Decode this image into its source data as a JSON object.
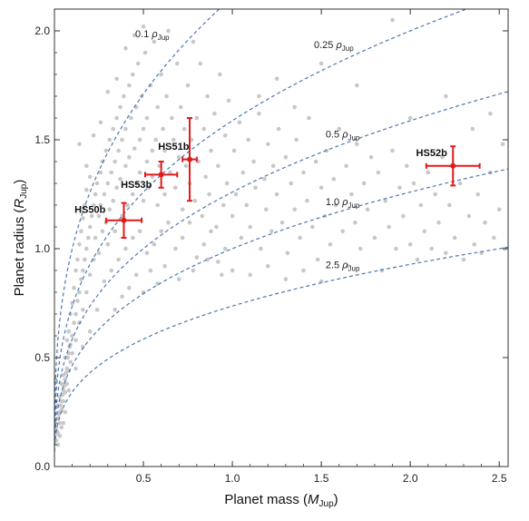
{
  "chart_data": {
    "type": "scatter",
    "xlabel": {
      "text": "Planet mass (",
      "sym": "M",
      "sub": "Jup",
      "close": ")"
    },
    "ylabel": {
      "text": "Planet radius (",
      "sym": "R",
      "sub": "Jup",
      "close": ")"
    },
    "xlim": [
      0,
      2.55
    ],
    "ylim": [
      0,
      2.1
    ],
    "xticks": [
      "0.5",
      "1.0",
      "1.5",
      "2.0",
      "2.5"
    ],
    "yticks": [
      "0.0",
      "0.5",
      "1.0",
      "1.5",
      "2.0"
    ],
    "density_curves": [
      {
        "coef": "0.1",
        "rho": "ρ",
        "sub": "Jup",
        "density": 0.1,
        "label_x": 0.55,
        "label_y": 1.97
      },
      {
        "coef": "0.25",
        "rho": "ρ",
        "sub": "Jup",
        "density": 0.25,
        "label_x": 1.57,
        "label_y": 1.92
      },
      {
        "coef": "0.5",
        "rho": "ρ",
        "sub": "Jup",
        "density": 0.5,
        "label_x": 1.62,
        "label_y": 1.51
      },
      {
        "coef": "1.0",
        "rho": "ρ",
        "sub": "Jup",
        "density": 1.0,
        "label_x": 1.62,
        "label_y": 1.2
      },
      {
        "coef": "2.5",
        "rho": "ρ",
        "sub": "Jup",
        "density": 2.5,
        "label_x": 1.62,
        "label_y": 0.91
      }
    ],
    "planets": [
      {
        "name": "HS50b",
        "x": 0.39,
        "y": 1.13,
        "xerr": 0.1,
        "yerr": 0.08,
        "label_x": 0.2,
        "label_y": 1.165
      },
      {
        "name": "HS51b",
        "x": 0.76,
        "y": 1.41,
        "xerr": 0.04,
        "yerr": 0.19,
        "label_x": 0.67,
        "label_y": 1.455
      },
      {
        "name": "HS52b",
        "x": 2.24,
        "y": 1.38,
        "xerr": 0.15,
        "yerr": 0.09,
        "label_x": 2.12,
        "label_y": 1.425
      },
      {
        "name": "HS53b",
        "x": 0.6,
        "y": 1.34,
        "xerr": 0.09,
        "yerr": 0.06,
        "label_x": 0.46,
        "label_y": 1.28
      }
    ],
    "colors": {
      "background_points": "#c8c8c8",
      "curves": "#4d78b0",
      "planets": "#e21a1a"
    },
    "background_points": [
      [
        0.01,
        0.12
      ],
      [
        0.01,
        0.18
      ],
      [
        0.02,
        0.22
      ],
      [
        0.02,
        0.28
      ],
      [
        0.02,
        0.15
      ],
      [
        0.03,
        0.25
      ],
      [
        0.03,
        0.32
      ],
      [
        0.03,
        0.2
      ],
      [
        0.04,
        0.3
      ],
      [
        0.04,
        0.38
      ],
      [
        0.04,
        0.26
      ],
      [
        0.05,
        0.35
      ],
      [
        0.05,
        0.42
      ],
      [
        0.05,
        0.3
      ],
      [
        0.06,
        0.4
      ],
      [
        0.06,
        0.5
      ],
      [
        0.06,
        0.34
      ],
      [
        0.07,
        0.45
      ],
      [
        0.07,
        0.58
      ],
      [
        0.07,
        0.38
      ],
      [
        0.08,
        0.52
      ],
      [
        0.08,
        0.62
      ],
      [
        0.08,
        0.44
      ],
      [
        0.09,
        0.56
      ],
      [
        0.09,
        0.7
      ],
      [
        0.09,
        0.48
      ],
      [
        0.1,
        0.6
      ],
      [
        0.1,
        0.75
      ],
      [
        0.1,
        0.52
      ],
      [
        0.11,
        0.66
      ],
      [
        0.11,
        0.82
      ],
      [
        0.12,
        0.7
      ],
      [
        0.12,
        0.9
      ],
      [
        0.12,
        0.58
      ],
      [
        0.13,
        0.76
      ],
      [
        0.13,
        0.95
      ],
      [
        0.14,
        0.8
      ],
      [
        0.14,
        1.02
      ],
      [
        0.14,
        0.66
      ],
      [
        0.15,
        0.86
      ],
      [
        0.15,
        1.08
      ],
      [
        0.16,
        0.9
      ],
      [
        0.16,
        1.14
      ],
      [
        0.16,
        0.72
      ],
      [
        0.17,
        0.95
      ],
      [
        0.17,
        1.2
      ],
      [
        0.18,
        1.0
      ],
      [
        0.18,
        1.27
      ],
      [
        0.18,
        0.8
      ],
      [
        0.19,
        1.05
      ],
      [
        0.2,
        1.1
      ],
      [
        0.2,
        1.33
      ],
      [
        0.2,
        0.88
      ],
      [
        0.21,
        1.15
      ],
      [
        0.22,
        1.2
      ],
      [
        0.22,
        0.95
      ],
      [
        0.23,
        1.25
      ],
      [
        0.23,
        1.05
      ],
      [
        0.24,
        1.3
      ],
      [
        0.25,
        1.15
      ],
      [
        0.25,
        0.98
      ],
      [
        0.26,
        1.35
      ],
      [
        0.26,
        1.2
      ],
      [
        0.27,
        1.4
      ],
      [
        0.27,
        1.08
      ],
      [
        0.28,
        1.25
      ],
      [
        0.29,
        1.45
      ],
      [
        0.29,
        1.12
      ],
      [
        0.3,
        1.3
      ],
      [
        0.3,
        1.02
      ],
      [
        0.31,
        1.5
      ],
      [
        0.31,
        1.18
      ],
      [
        0.32,
        1.35
      ],
      [
        0.33,
        1.55
      ],
      [
        0.33,
        1.22
      ],
      [
        0.34,
        1.4
      ],
      [
        0.34,
        1.08
      ],
      [
        0.35,
        1.6
      ],
      [
        0.35,
        1.28
      ],
      [
        0.36,
        1.45
      ],
      [
        0.37,
        1.65
      ],
      [
        0.37,
        1.32
      ],
      [
        0.38,
        1.5
      ],
      [
        0.38,
        1.15
      ],
      [
        0.39,
        1.7
      ],
      [
        0.4,
        1.38
      ],
      [
        0.4,
        1.55
      ],
      [
        0.41,
        1.2
      ],
      [
        0.42,
        1.75
      ],
      [
        0.42,
        1.42
      ],
      [
        0.43,
        1.6
      ],
      [
        0.44,
        1.25
      ],
      [
        0.44,
        1.8
      ],
      [
        0.45,
        1.46
      ],
      [
        0.46,
        1.65
      ],
      [
        0.46,
        1.3
      ],
      [
        0.47,
        1.85
      ],
      [
        0.48,
        1.5
      ],
      [
        0.48,
        1.35
      ],
      [
        0.49,
        1.7
      ],
      [
        0.5,
        1.55
      ],
      [
        0.5,
        1.22
      ],
      [
        0.51,
        1.9
      ],
      [
        0.52,
        1.4
      ],
      [
        0.52,
        1.6
      ],
      [
        0.53,
        1.28
      ],
      [
        0.54,
        1.75
      ],
      [
        0.55,
        1.45
      ],
      [
        0.55,
        1.33
      ],
      [
        0.56,
        1.95
      ],
      [
        0.57,
        1.5
      ],
      [
        0.58,
        1.65
      ],
      [
        0.58,
        1.2
      ],
      [
        0.59,
        1.38
      ],
      [
        0.6,
        1.8
      ],
      [
        0.61,
        1.55
      ],
      [
        0.62,
        1.25
      ],
      [
        0.62,
        1.45
      ],
      [
        0.63,
        1.7
      ],
      [
        0.64,
        2.0
      ],
      [
        0.65,
        1.35
      ],
      [
        0.66,
        1.6
      ],
      [
        0.67,
        1.5
      ],
      [
        0.68,
        1.28
      ],
      [
        0.69,
        1.85
      ],
      [
        0.7,
        1.42
      ],
      [
        0.71,
        1.65
      ],
      [
        0.72,
        1.18
      ],
      [
        0.73,
        1.55
      ],
      [
        0.74,
        1.38
      ],
      [
        0.75,
        1.75
      ],
      [
        0.76,
        1.3
      ],
      [
        0.77,
        1.5
      ],
      [
        0.78,
        1.95
      ],
      [
        0.79,
        1.22
      ],
      [
        0.8,
        1.6
      ],
      [
        0.81,
        1.4
      ],
      [
        0.82,
        1.85
      ],
      [
        0.83,
        1.15
      ],
      [
        0.84,
        1.55
      ],
      [
        0.85,
        1.33
      ],
      [
        0.86,
        1.7
      ],
      [
        0.87,
        1.25
      ],
      [
        0.88,
        1.45
      ],
      [
        0.9,
        1.62
      ],
      [
        0.91,
        1.1
      ],
      [
        0.92,
        1.38
      ],
      [
        0.93,
        1.8
      ],
      [
        0.95,
        1.2
      ],
      [
        0.96,
        1.52
      ],
      [
        0.97,
        1.3
      ],
      [
        0.98,
        1.68
      ],
      [
        1.0,
        1.15
      ],
      [
        1.01,
        1.45
      ],
      [
        1.02,
        1.25
      ],
      [
        1.04,
        1.58
      ],
      [
        1.05,
        1.05
      ],
      [
        1.06,
        1.35
      ],
      [
        1.08,
        1.2
      ],
      [
        1.09,
        1.5
      ],
      [
        1.1,
        1.1
      ],
      [
        1.12,
        1.4
      ],
      [
        1.13,
        1.28
      ],
      [
        1.15,
        1.62
      ],
      [
        1.16,
        1.0
      ],
      [
        1.18,
        1.32
      ],
      [
        1.19,
        1.18
      ],
      [
        1.2,
        1.48
      ],
      [
        1.22,
        1.08
      ],
      [
        1.23,
        1.38
      ],
      [
        1.25,
        1.25
      ],
      [
        1.26,
        1.55
      ],
      [
        1.28,
        1.12
      ],
      [
        1.3,
        1.42
      ],
      [
        1.31,
        0.98
      ],
      [
        1.33,
        1.3
      ],
      [
        1.35,
        1.18
      ],
      [
        1.36,
        1.5
      ],
      [
        1.38,
        1.05
      ],
      [
        1.4,
        1.35
      ],
      [
        1.42,
        1.22
      ],
      [
        1.43,
        1.6
      ],
      [
        1.45,
        1.1
      ],
      [
        1.47,
        1.4
      ],
      [
        1.48,
        0.95
      ],
      [
        1.5,
        1.28
      ],
      [
        1.52,
        1.15
      ],
      [
        1.53,
        1.45
      ],
      [
        1.55,
        1.02
      ],
      [
        1.57,
        1.32
      ],
      [
        1.58,
        1.2
      ],
      [
        1.6,
        1.55
      ],
      [
        1.62,
        1.08
      ],
      [
        1.64,
        1.38
      ],
      [
        1.65,
        0.92
      ],
      [
        1.67,
        1.25
      ],
      [
        1.69,
        1.12
      ],
      [
        1.7,
        1.48
      ],
      [
        1.72,
        1.0
      ],
      [
        1.74,
        1.3
      ],
      [
        1.76,
        1.18
      ],
      [
        1.78,
        1.42
      ],
      [
        1.8,
        1.05
      ],
      [
        1.82,
        1.35
      ],
      [
        1.84,
        0.9
      ],
      [
        1.86,
        1.22
      ],
      [
        1.88,
        1.1
      ],
      [
        1.9,
        1.45
      ],
      [
        1.92,
        1.0
      ],
      [
        1.94,
        1.28
      ],
      [
        1.96,
        1.15
      ],
      [
        1.98,
        1.38
      ],
      [
        2.0,
        1.02
      ],
      [
        2.02,
        1.3
      ],
      [
        2.04,
        0.95
      ],
      [
        2.06,
        1.2
      ],
      [
        2.08,
        1.08
      ],
      [
        2.1,
        1.35
      ],
      [
        2.12,
        1.0
      ],
      [
        2.14,
        1.25
      ],
      [
        2.16,
        1.12
      ],
      [
        2.18,
        1.42
      ],
      [
        2.2,
        0.98
      ],
      [
        2.22,
        1.2
      ],
      [
        2.25,
        1.05
      ],
      [
        2.28,
        1.3
      ],
      [
        2.3,
        0.95
      ],
      [
        2.33,
        1.15
      ],
      [
        2.36,
        1.02
      ],
      [
        2.38,
        1.25
      ],
      [
        2.4,
        0.98
      ],
      [
        2.42,
        1.12
      ],
      [
        2.45,
        1.35
      ],
      [
        2.47,
        1.05
      ],
      [
        2.5,
        1.18
      ],
      [
        2.52,
        1.48
      ],
      [
        2.53,
        1.0
      ],
      [
        0.14,
        1.48
      ],
      [
        0.18,
        1.38
      ],
      [
        0.22,
        1.52
      ],
      [
        0.26,
        1.58
      ],
      [
        0.3,
        1.72
      ],
      [
        0.35,
        1.78
      ],
      [
        0.4,
        1.92
      ],
      [
        0.45,
        1.98
      ],
      [
        0.5,
        2.02
      ],
      [
        0.28,
        0.85
      ],
      [
        0.32,
        0.9
      ],
      [
        0.36,
        0.95
      ],
      [
        0.4,
        1.0
      ],
      [
        0.44,
        1.05
      ],
      [
        0.48,
        1.08
      ],
      [
        0.52,
        0.98
      ],
      [
        0.56,
        1.02
      ],
      [
        0.6,
        1.08
      ],
      [
        0.64,
        1.12
      ],
      [
        0.68,
        1.0
      ],
      [
        0.72,
        1.05
      ],
      [
        0.76,
        1.12
      ],
      [
        0.8,
        0.96
      ],
      [
        0.84,
        1.02
      ],
      [
        0.88,
        1.08
      ],
      [
        0.92,
        0.94
      ],
      [
        0.96,
        1.0
      ],
      [
        1.0,
        0.9
      ],
      [
        1.1,
        0.88
      ],
      [
        1.2,
        0.92
      ],
      [
        1.3,
        0.86
      ],
      [
        1.4,
        0.9
      ],
      [
        1.5,
        0.85
      ],
      [
        0.34,
        0.72
      ],
      [
        0.38,
        0.78
      ],
      [
        0.42,
        0.82
      ],
      [
        0.46,
        0.88
      ],
      [
        0.5,
        0.8
      ],
      [
        0.54,
        0.9
      ],
      [
        0.58,
        0.84
      ],
      [
        0.62,
        0.92
      ],
      [
        0.7,
        0.86
      ],
      [
        0.78,
        0.9
      ],
      [
        0.86,
        0.95
      ],
      [
        0.94,
        0.88
      ],
      [
        1.15,
        1.7
      ],
      [
        1.25,
        1.78
      ],
      [
        1.35,
        1.65
      ],
      [
        1.5,
        1.85
      ],
      [
        1.7,
        1.75
      ],
      [
        1.9,
        2.05
      ],
      [
        2.0,
        1.6
      ],
      [
        2.2,
        1.7
      ],
      [
        2.35,
        1.55
      ],
      [
        2.45,
        1.62
      ],
      [
        0.24,
        0.72
      ],
      [
        0.2,
        0.62
      ],
      [
        0.16,
        0.55
      ],
      [
        0.12,
        0.45
      ],
      [
        0.08,
        0.35
      ],
      [
        0.06,
        0.25
      ],
      [
        0.05,
        0.2
      ],
      [
        0.04,
        0.18
      ],
      [
        0.03,
        0.14
      ],
      [
        0.02,
        0.1
      ],
      [
        0.015,
        0.16
      ],
      [
        0.025,
        0.24
      ],
      [
        0.035,
        0.28
      ],
      [
        0.045,
        0.33
      ],
      [
        0.055,
        0.37
      ],
      [
        0.065,
        0.43
      ],
      [
        0.075,
        0.5
      ],
      [
        0.085,
        0.55
      ]
    ]
  }
}
